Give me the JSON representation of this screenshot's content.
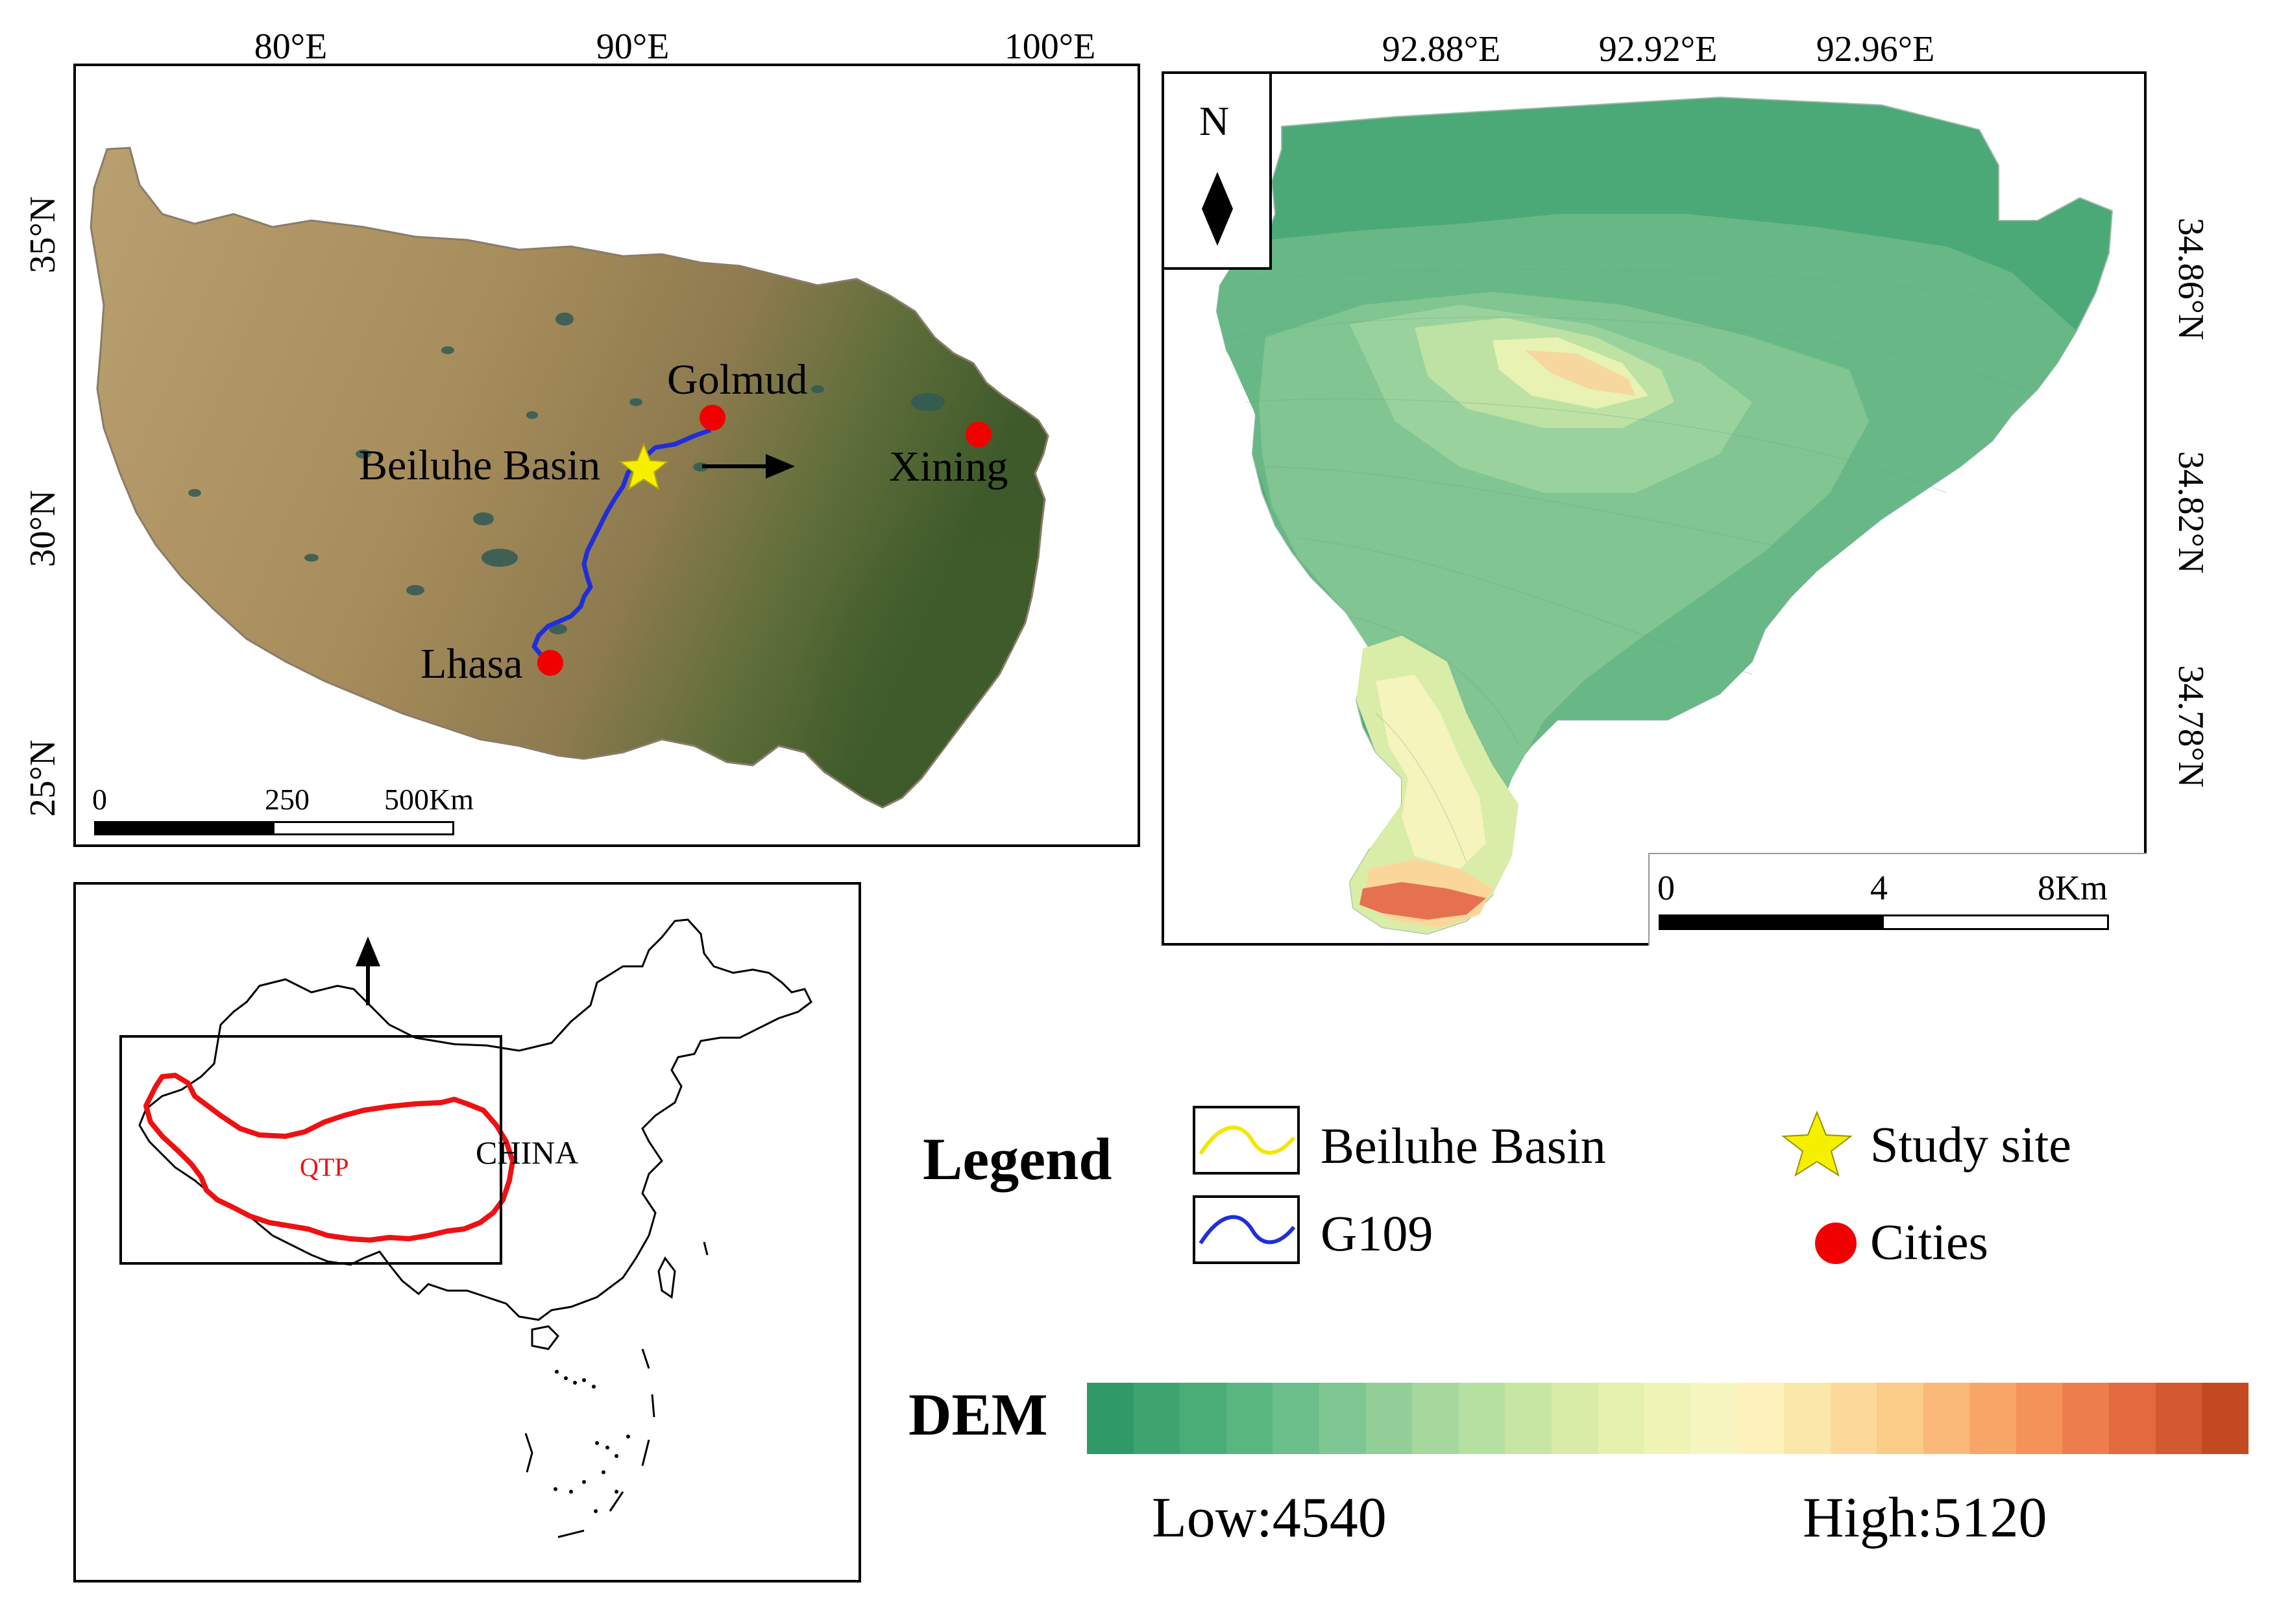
{
  "top_left_map": {
    "lon_labels": [
      "80°E",
      "90°E",
      "100°E"
    ],
    "lat_labels": [
      "35°N",
      "30°N",
      "25°N"
    ],
    "cities": [
      {
        "name": "Golmud"
      },
      {
        "name": "Xining"
      },
      {
        "name": "Lhasa"
      }
    ],
    "study_site_label": "Beiluhe Basin",
    "scale_bar": {
      "labels": [
        "0",
        "250",
        "500Km"
      ]
    }
  },
  "top_right_map": {
    "lon_labels": [
      "92.88°E",
      "92.92°E",
      "92.96°E"
    ],
    "lat_labels": [
      "34.86°N",
      "34.82°N",
      "34.78°N"
    ],
    "north_arrow_label": "N",
    "scale_bar": {
      "labels": [
        "0",
        "4",
        "8Km"
      ]
    }
  },
  "inset_map": {
    "region_label": "QTP",
    "country_label": "CHINA"
  },
  "legend": {
    "title": "Legend",
    "items": [
      {
        "label": "Beiluhe Basin",
        "symbol": "yellow-line-icon",
        "color": "#f5e600"
      },
      {
        "label": "G109",
        "symbol": "blue-line-icon",
        "color": "#1f2fd8"
      },
      {
        "label": "Study site",
        "symbol": "star-icon",
        "color": "#f5f000"
      },
      {
        "label": "Cities",
        "symbol": "red-dot-icon",
        "color": "#f00000"
      }
    ]
  },
  "dem": {
    "title": "DEM",
    "low_label": "Low:4540",
    "high_label": "High:5120",
    "colors": [
      "#2f9a68",
      "#3ea46f",
      "#4aad78",
      "#5ab67f",
      "#6cbf8a",
      "#7fc792",
      "#92cf98",
      "#a6d89e",
      "#b6dfa2",
      "#c7e6a4",
      "#d8eca8",
      "#e6f1ae",
      "#f0f4b6",
      "#f8f6c0",
      "#fdf2bb",
      "#fce7aa",
      "#fcd99a",
      "#fbcb88",
      "#fab978",
      "#f8a668",
      "#f4925a",
      "#ee7d4d",
      "#e36a3e",
      "#d45830",
      "#c34a20"
    ]
  },
  "colors": {
    "road": "#1f2fd8",
    "city": "#f00000",
    "star": "#f5f000",
    "qtp_outline": "#ee1111"
  }
}
